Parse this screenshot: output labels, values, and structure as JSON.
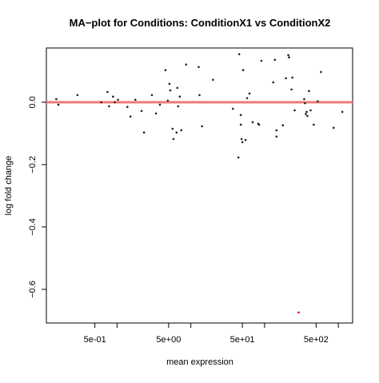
{
  "chart_data": {
    "type": "scatter",
    "title": "MA−plot for Conditions: ConditionX1 vs ConditionX2",
    "x_label": "mean expression",
    "y_label": "log fold change",
    "xscale": "log",
    "xlim": [
      0.11,
      1563
    ],
    "ylim": [
      -0.708,
      0.174
    ],
    "xticks": [
      {
        "value": 0.5,
        "label": "5e-01"
      },
      {
        "value": 5,
        "label": "5e+00"
      },
      {
        "value": 50,
        "label": "5e+01"
      },
      {
        "value": 500,
        "label": "5e+02"
      }
    ],
    "xminorticks": [
      1,
      10,
      100,
      1000
    ],
    "yticks": [
      {
        "value": 0,
        "label": "0.0"
      },
      {
        "value": -0.2,
        "label": "−0.2"
      },
      {
        "value": -0.4,
        "label": "−0.4"
      },
      {
        "value": -0.6,
        "label": "−0.6"
      }
    ],
    "hline": {
      "value": 0,
      "color": "#f07878"
    },
    "series": [
      {
        "color": "#222222",
        "x": [
          0.15,
          0.16,
          0.29,
          0.61,
          0.74,
          0.78,
          0.88,
          0.93,
          1.03,
          1.38,
          1.52,
          1.77,
          2.15,
          2.32,
          2.97,
          3.37,
          3.81,
          4.53,
          4.88,
          5.13,
          5.26,
          5.66,
          5.81,
          6.41,
          6.56,
          6.73,
          7.08,
          7.43,
          8.63,
          12.8,
          13.1,
          14.2,
          20.0,
          37.2,
          44.2,
          45.3,
          47.6,
          47.6,
          48.8,
          50,
          51.3,
          55.2,
          58.0,
          62.5,
          69.0,
          82.0,
          84.2,
          90.6,
          131,
          138,
          145,
          145,
          177,
          195,
          210,
          215,
          232,
          238,
          256,
          345,
          353,
          362,
          372,
          381,
          400,
          421,
          465,
          526,
          581,
          863,
          1133
        ],
        "values": [
          0.01,
          -0.008,
          0.023,
          0,
          0.033,
          -0.013,
          0.018,
          0,
          0.008,
          -0.015,
          -0.046,
          0.008,
          -0.028,
          -0.097,
          0.023,
          -0.036,
          -0.008,
          0.103,
          0.005,
          0.059,
          0.038,
          -0.085,
          -0.118,
          -0.097,
          0.046,
          -0.013,
          0.018,
          -0.09,
          0.121,
          0.113,
          0.023,
          -0.077,
          0.072,
          -0.021,
          -0.177,
          0.154,
          -0.041,
          -0.072,
          -0.118,
          -0.128,
          0.103,
          -0.121,
          0.013,
          0.028,
          -0.064,
          -0.069,
          -0.072,
          0.133,
          0.064,
          0.136,
          -0.09,
          -0.11,
          -0.074,
          0.077,
          0.151,
          0.144,
          0.041,
          0.079,
          -0.026,
          0.01,
          -0.003,
          -0.038,
          -0.031,
          -0.044,
          0.036,
          -0.026,
          -0.072,
          0.003,
          0.097,
          -0.082,
          -0.031
        ]
      },
      {
        "color": "#dd0000",
        "x": [
          290
        ],
        "values": [
          -0.674
        ]
      }
    ]
  }
}
